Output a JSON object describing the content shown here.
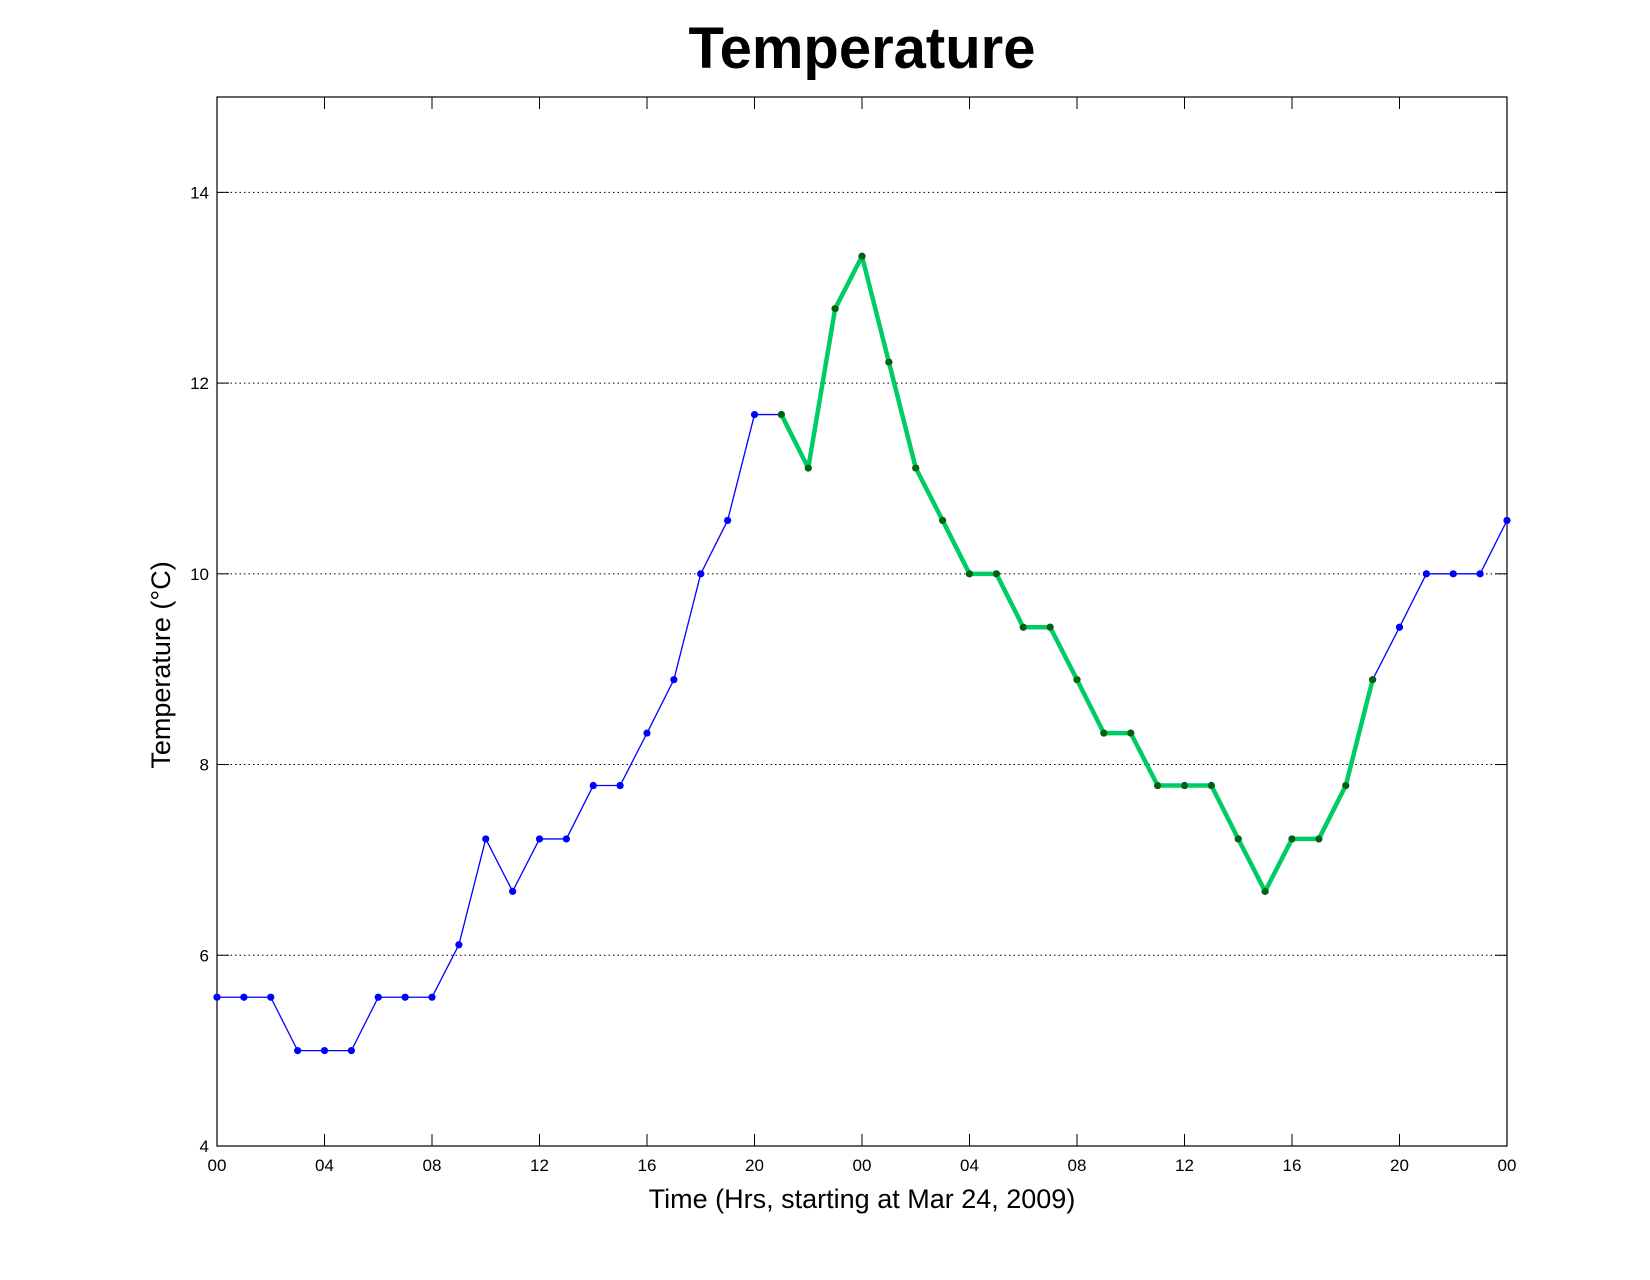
{
  "chart_data": {
    "type": "line",
    "title": "Temperature",
    "xlabel": "Time (Hrs, starting at Mar 24, 2009)",
    "ylabel": "Temperature (°C)",
    "xlim": [
      0,
      48
    ],
    "ylim": [
      4,
      15
    ],
    "grid": "horizontal dotted",
    "x_ticks": [
      0,
      4,
      8,
      12,
      16,
      20,
      24,
      28,
      32,
      36,
      40,
      44,
      48
    ],
    "x_tick_labels": [
      "00",
      "04",
      "08",
      "12",
      "16",
      "20",
      "00",
      "04",
      "08",
      "12",
      "16",
      "20",
      "00"
    ],
    "y_ticks": [
      4,
      6,
      8,
      10,
      12,
      14
    ],
    "y_tick_labels": [
      "4",
      "6",
      "8",
      "10",
      "12",
      "14"
    ],
    "series": [
      {
        "color": "#0000ff",
        "style": "thin line with dot markers",
        "x": [
          0,
          1,
          2,
          3,
          4,
          5,
          6,
          7,
          8,
          9,
          10,
          11,
          12,
          13,
          14,
          15,
          16,
          17,
          18,
          19,
          20,
          21,
          22,
          23,
          24,
          25,
          26,
          27,
          28,
          29,
          30,
          31,
          32,
          33,
          34,
          35,
          36,
          37,
          38,
          39,
          40,
          41,
          42,
          43,
          44,
          45,
          46,
          47,
          48
        ],
        "values": [
          5.56,
          5.56,
          5.56,
          5.0,
          5.0,
          5.0,
          5.56,
          5.56,
          5.56,
          6.11,
          7.22,
          6.67,
          7.22,
          7.22,
          7.78,
          7.78,
          8.33,
          8.89,
          10.0,
          10.56,
          11.67,
          11.67,
          11.11,
          12.78,
          13.33,
          12.22,
          11.11,
          10.56,
          10.0,
          10.0,
          9.44,
          9.44,
          8.89,
          8.33,
          8.33,
          7.78,
          7.78,
          7.78,
          7.22,
          6.67,
          7.22,
          7.22,
          7.78,
          8.89,
          9.44,
          10.0,
          10.0,
          10.0,
          10.56
        ]
      },
      {
        "color": "#00cc66",
        "marker_color": "#006600",
        "style": "thick highlight line",
        "x": [
          21,
          22,
          23,
          24,
          25,
          26,
          27,
          28,
          29,
          30,
          31,
          32,
          33,
          34,
          35,
          36,
          37,
          38,
          39,
          40,
          41,
          42,
          43
        ],
        "values": [
          11.67,
          11.11,
          12.78,
          13.33,
          12.22,
          11.11,
          10.56,
          10.0,
          10.0,
          9.44,
          9.44,
          8.89,
          8.33,
          8.33,
          7.78,
          7.78,
          7.78,
          7.22,
          6.67,
          7.22,
          7.22,
          7.78,
          8.89
        ]
      }
    ]
  }
}
